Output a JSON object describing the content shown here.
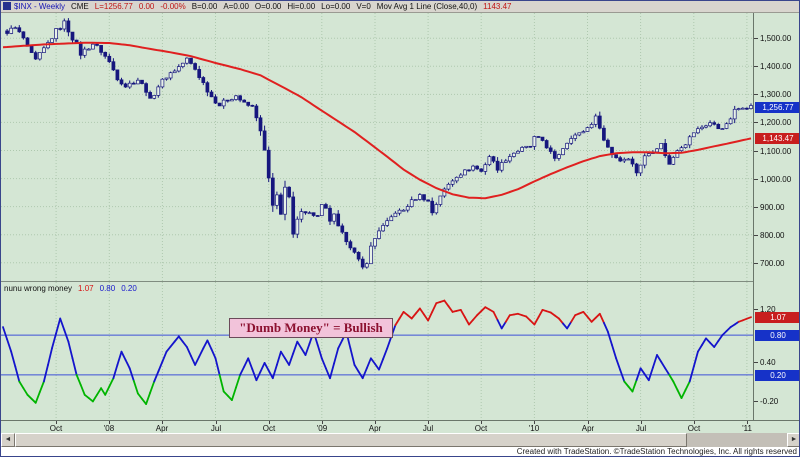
{
  "window": {
    "info_bar_segments": [
      {
        "text": "$INX - Weekly",
        "color": "#1414b4"
      },
      {
        "text": "CME",
        "color": "#111111"
      },
      {
        "text": "L=1256.77",
        "color": "#c01414"
      },
      {
        "text": "0.00",
        "color": "#c01414"
      },
      {
        "text": "-0.00%",
        "color": "#c01414"
      },
      {
        "text": "B=0.00",
        "color": "#111111"
      },
      {
        "text": "A=0.00",
        "color": "#111111"
      },
      {
        "text": "O=0.00",
        "color": "#111111"
      },
      {
        "text": "Hi=0.00",
        "color": "#111111"
      },
      {
        "text": "Lo=0.00",
        "color": "#111111"
      },
      {
        "text": "V=0",
        "color": "#111111"
      },
      {
        "text": "Mov Avg 1 Line (Close,40,0)",
        "color": "#111111"
      },
      {
        "text": "1143.47",
        "color": "#c01414"
      }
    ]
  },
  "colors": {
    "chart_bg": "#d4e6d4",
    "grid": "#aec8ae",
    "candle": "#16167e",
    "candle_up_fill": "#e8f2e8",
    "ma_line": "#e02020",
    "osc_high": "#d81414",
    "osc_mid": "#1414cc",
    "osc_low": "#00b400",
    "threshold_line": "#3c50d8",
    "badge_blue": "#1632c8",
    "badge_red": "#c81e1e"
  },
  "indicator": {
    "name": "nunu wrong money",
    "values": [
      {
        "text": "1.07",
        "color": "#d81414"
      },
      {
        "text": "0.80",
        "color": "#1414cc"
      },
      {
        "text": "0.20",
        "color": "#1414cc"
      }
    ],
    "annotation": "\"Dumb Money\" = Bullish"
  },
  "scrollbar": {
    "left_arrow": "◄",
    "right_arrow": "►"
  },
  "footer": {
    "credit": "Created with TradeStation. ©TradeStation Technologies, Inc. All rights reserved"
  },
  "chart_data": [
    {
      "type": "candlestick",
      "symbol": "$INX",
      "interval": "Weekly",
      "exchange": "CME",
      "last": 1256.77,
      "ma_value": 1143.47,
      "total_weeks": 183,
      "ylim": [
        635,
        1590
      ],
      "grid": true,
      "yticks": [
        {
          "label": "1,500.00",
          "value": 1500
        },
        {
          "label": "1,400.00",
          "value": 1400
        },
        {
          "label": "1,300.00",
          "value": 1300
        },
        {
          "label": "1,200.00",
          "value": 1200
        },
        {
          "label": "1,100.00",
          "value": 1100
        },
        {
          "label": "1,000.00",
          "value": 1000
        },
        {
          "label": "900.00",
          "value": 900
        },
        {
          "label": "800.00",
          "value": 800
        },
        {
          "label": "700.00",
          "value": 700
        }
      ],
      "badges": [
        {
          "label": "1,256.77",
          "value": 1256.77,
          "color_key": "badge_blue"
        },
        {
          "label": "1,143.47",
          "value": 1143.47,
          "color_key": "badge_red"
        }
      ],
      "x_axis_labels": [
        {
          "text": "Oct",
          "week": 13
        },
        {
          "text": "'08",
          "week": 26
        },
        {
          "text": "Apr",
          "week": 39
        },
        {
          "text": "Jul",
          "week": 52
        },
        {
          "text": "Oct",
          "week": 65
        },
        {
          "text": "'09",
          "week": 78
        },
        {
          "text": "Apr",
          "week": 91
        },
        {
          "text": "Jul",
          "week": 104
        },
        {
          "text": "Oct",
          "week": 117
        },
        {
          "text": "'10",
          "week": 130
        },
        {
          "text": "Apr",
          "week": 143
        },
        {
          "text": "Jul",
          "week": 156
        },
        {
          "text": "Oct",
          "week": 169
        },
        {
          "text": "'11",
          "week": 182
        }
      ],
      "series": [
        {
          "name": "$INX weekly close (anchor estimates read from chart)",
          "anchors": [
            [
              0,
              1520
            ],
            [
              3,
              1535
            ],
            [
              5,
              1500
            ],
            [
              6,
              1462
            ],
            [
              8,
              1420
            ],
            [
              11,
              1482
            ],
            [
              13,
              1526
            ],
            [
              15,
              1555
            ],
            [
              17,
              1502
            ],
            [
              19,
              1445
            ],
            [
              22,
              1481
            ],
            [
              24,
              1455
            ],
            [
              26,
              1415
            ],
            [
              28,
              1360
            ],
            [
              30,
              1330
            ],
            [
              33,
              1353
            ],
            [
              35,
              1315
            ],
            [
              36,
              1278
            ],
            [
              38,
              1330
            ],
            [
              40,
              1365
            ],
            [
              43,
              1398
            ],
            [
              45,
              1425
            ],
            [
              47,
              1390
            ],
            [
              49,
              1340
            ],
            [
              51,
              1292
            ],
            [
              53,
              1262
            ],
            [
              55,
              1282
            ],
            [
              57,
              1296
            ],
            [
              59,
              1266
            ],
            [
              61,
              1255
            ],
            [
              62,
              1222
            ],
            [
              63,
              1165
            ],
            [
              64,
              1099
            ],
            [
              66,
              900
            ],
            [
              67,
              940
            ],
            [
              68,
              877
            ],
            [
              69,
              969
            ],
            [
              70,
              930
            ],
            [
              71,
              800
            ],
            [
              72,
              851
            ],
            [
              73,
              888
            ],
            [
              75,
              876
            ],
            [
              77,
              866
            ],
            [
              78,
              903
            ],
            [
              79,
              890
            ],
            [
              80,
              850
            ],
            [
              81,
              869
            ],
            [
              82,
              827
            ],
            [
              84,
              780
            ],
            [
              86,
              735
            ],
            [
              88,
              683
            ],
            [
              89,
              701
            ],
            [
              90,
              757
            ],
            [
              92,
              816
            ],
            [
              94,
              845
            ],
            [
              96,
              880
            ],
            [
              98,
              887
            ],
            [
              100,
              920
            ],
            [
              102,
              940
            ],
            [
              104,
              918
            ],
            [
              105,
              879
            ],
            [
              107,
              940
            ],
            [
              109,
              979
            ],
            [
              111,
              1010
            ],
            [
              113,
              1026
            ],
            [
              115,
              1044
            ],
            [
              117,
              1025
            ],
            [
              119,
              1080
            ],
            [
              121,
              1036
            ],
            [
              123,
              1069
            ],
            [
              125,
              1092
            ],
            [
              127,
              1106
            ],
            [
              129,
              1115
            ],
            [
              130,
              1145
            ],
            [
              132,
              1136
            ],
            [
              134,
              1092
            ],
            [
              135,
              1066
            ],
            [
              137,
              1110
            ],
            [
              139,
              1150
            ],
            [
              141,
              1159
            ],
            [
              143,
              1181
            ],
            [
              145,
              1217
            ],
            [
              146,
              1187
            ],
            [
              147,
              1136
            ],
            [
              149,
              1088
            ],
            [
              151,
              1065
            ],
            [
              153,
              1076
            ],
            [
              155,
              1023
            ],
            [
              157,
              1078
            ],
            [
              159,
              1102
            ],
            [
              161,
              1122
            ],
            [
              163,
              1049
            ],
            [
              165,
              1105
            ],
            [
              167,
              1126
            ],
            [
              169,
              1165
            ],
            [
              171,
              1184
            ],
            [
              173,
              1199
            ],
            [
              175,
              1180
            ],
            [
              177,
              1189
            ],
            [
              179,
              1241
            ],
            [
              181,
              1258
            ],
            [
              183,
              1257
            ]
          ]
        },
        {
          "name": "Mov Avg 1 Line (Close,40,0)",
          "color": "#e02020",
          "anchors": [
            [
              0,
              1468
            ],
            [
              10,
              1478
            ],
            [
              20,
              1484
            ],
            [
              26,
              1483
            ],
            [
              31,
              1475
            ],
            [
              36,
              1462
            ],
            [
              41,
              1450
            ],
            [
              46,
              1436
            ],
            [
              52,
              1412
            ],
            [
              58,
              1390
            ],
            [
              63,
              1368
            ],
            [
              65,
              1352
            ],
            [
              69,
              1322
            ],
            [
              73,
              1290
            ],
            [
              78,
              1242
            ],
            [
              82,
              1204
            ],
            [
              86,
              1166
            ],
            [
              90,
              1122
            ],
            [
              94,
              1078
            ],
            [
              98,
              1032
            ],
            [
              102,
              996
            ],
            [
              106,
              966
            ],
            [
              110,
              944
            ],
            [
              114,
              932
            ],
            [
              118,
              930
            ],
            [
              122,
              942
            ],
            [
              126,
              962
            ],
            [
              130,
              990
            ],
            [
              134,
              1016
            ],
            [
              138,
              1040
            ],
            [
              142,
              1062
            ],
            [
              146,
              1080
            ],
            [
              150,
              1090
            ],
            [
              154,
              1094
            ],
            [
              158,
              1094
            ],
            [
              162,
              1090
            ],
            [
              166,
              1092
            ],
            [
              170,
              1102
            ],
            [
              174,
              1115
            ],
            [
              178,
              1127
            ],
            [
              181,
              1137
            ],
            [
              183,
              1143
            ]
          ]
        }
      ]
    },
    {
      "type": "line",
      "name": "nunu wrong money",
      "current": 1.07,
      "ylim": [
        -0.48,
        1.6
      ],
      "yticks": [
        {
          "label": "1.20",
          "value": 1.2
        },
        {
          "label": "0.40",
          "value": 0.4
        },
        {
          "label": "-0.20",
          "value": -0.2
        }
      ],
      "badges": [
        {
          "label": "1.07",
          "value": 1.07,
          "color_key": "badge_red"
        },
        {
          "label": "0.80",
          "value": 0.8,
          "color_key": "badge_blue"
        },
        {
          "label": "0.20",
          "value": 0.2,
          "color_key": "badge_blue"
        }
      ],
      "thresholds": [
        0.8,
        0.2
      ],
      "color_rules": {
        "red_above": 0.99,
        "green_below": 0.16
      },
      "anchors": [
        [
          0,
          0.92
        ],
        [
          2,
          0.55
        ],
        [
          4,
          0.1
        ],
        [
          6,
          -0.1
        ],
        [
          8,
          -0.22
        ],
        [
          10,
          0.1
        ],
        [
          12,
          0.6
        ],
        [
          14,
          1.05
        ],
        [
          16,
          0.7
        ],
        [
          18,
          0.2
        ],
        [
          20,
          -0.1
        ],
        [
          22,
          -0.2
        ],
        [
          24,
          0.0
        ],
        [
          25,
          -0.1
        ],
        [
          27,
          0.15
        ],
        [
          29,
          0.55
        ],
        [
          31,
          0.3
        ],
        [
          33,
          -0.08
        ],
        [
          35,
          -0.24
        ],
        [
          37,
          0.1
        ],
        [
          40,
          0.55
        ],
        [
          43,
          0.78
        ],
        [
          45,
          0.62
        ],
        [
          47,
          0.35
        ],
        [
          49,
          0.6
        ],
        [
          50,
          0.72
        ],
        [
          52,
          0.45
        ],
        [
          54,
          -0.05
        ],
        [
          56,
          -0.18
        ],
        [
          58,
          0.2
        ],
        [
          60,
          0.45
        ],
        [
          62,
          0.12
        ],
        [
          64,
          0.38
        ],
        [
          66,
          0.15
        ],
        [
          68,
          0.55
        ],
        [
          70,
          0.35
        ],
        [
          72,
          0.7
        ],
        [
          74,
          0.5
        ],
        [
          76,
          0.85
        ],
        [
          78,
          0.45
        ],
        [
          80,
          0.15
        ],
        [
          82,
          0.6
        ],
        [
          84,
          0.85
        ],
        [
          86,
          0.35
        ],
        [
          88,
          0.15
        ],
        [
          90,
          0.45
        ],
        [
          92,
          0.28
        ],
        [
          94,
          0.6
        ],
        [
          96,
          0.95
        ],
        [
          98,
          1.15
        ],
        [
          100,
          1.05
        ],
        [
          102,
          1.2
        ],
        [
          104,
          1.02
        ],
        [
          106,
          1.28
        ],
        [
          108,
          1.32
        ],
        [
          110,
          1.15
        ],
        [
          112,
          1.18
        ],
        [
          114,
          0.96
        ],
        [
          116,
          1.1
        ],
        [
          118,
          1.22
        ],
        [
          120,
          1.15
        ],
        [
          122,
          0.9
        ],
        [
          124,
          1.1
        ],
        [
          126,
          1.12
        ],
        [
          128,
          1.08
        ],
        [
          130,
          0.96
        ],
        [
          132,
          1.18
        ],
        [
          134,
          1.14
        ],
        [
          136,
          1.05
        ],
        [
          138,
          0.9
        ],
        [
          140,
          1.1
        ],
        [
          142,
          1.15
        ],
        [
          144,
          1.0
        ],
        [
          146,
          1.12
        ],
        [
          148,
          0.85
        ],
        [
          150,
          0.45
        ],
        [
          152,
          0.1
        ],
        [
          154,
          -0.05
        ],
        [
          156,
          0.3
        ],
        [
          158,
          0.12
        ],
        [
          160,
          0.5
        ],
        [
          162,
          0.3
        ],
        [
          164,
          0.1
        ],
        [
          166,
          -0.15
        ],
        [
          168,
          0.1
        ],
        [
          170,
          0.55
        ],
        [
          172,
          0.75
        ],
        [
          174,
          0.62
        ],
        [
          176,
          0.8
        ],
        [
          178,
          0.92
        ],
        [
          180,
          1.0
        ],
        [
          183,
          1.07
        ]
      ]
    }
  ]
}
